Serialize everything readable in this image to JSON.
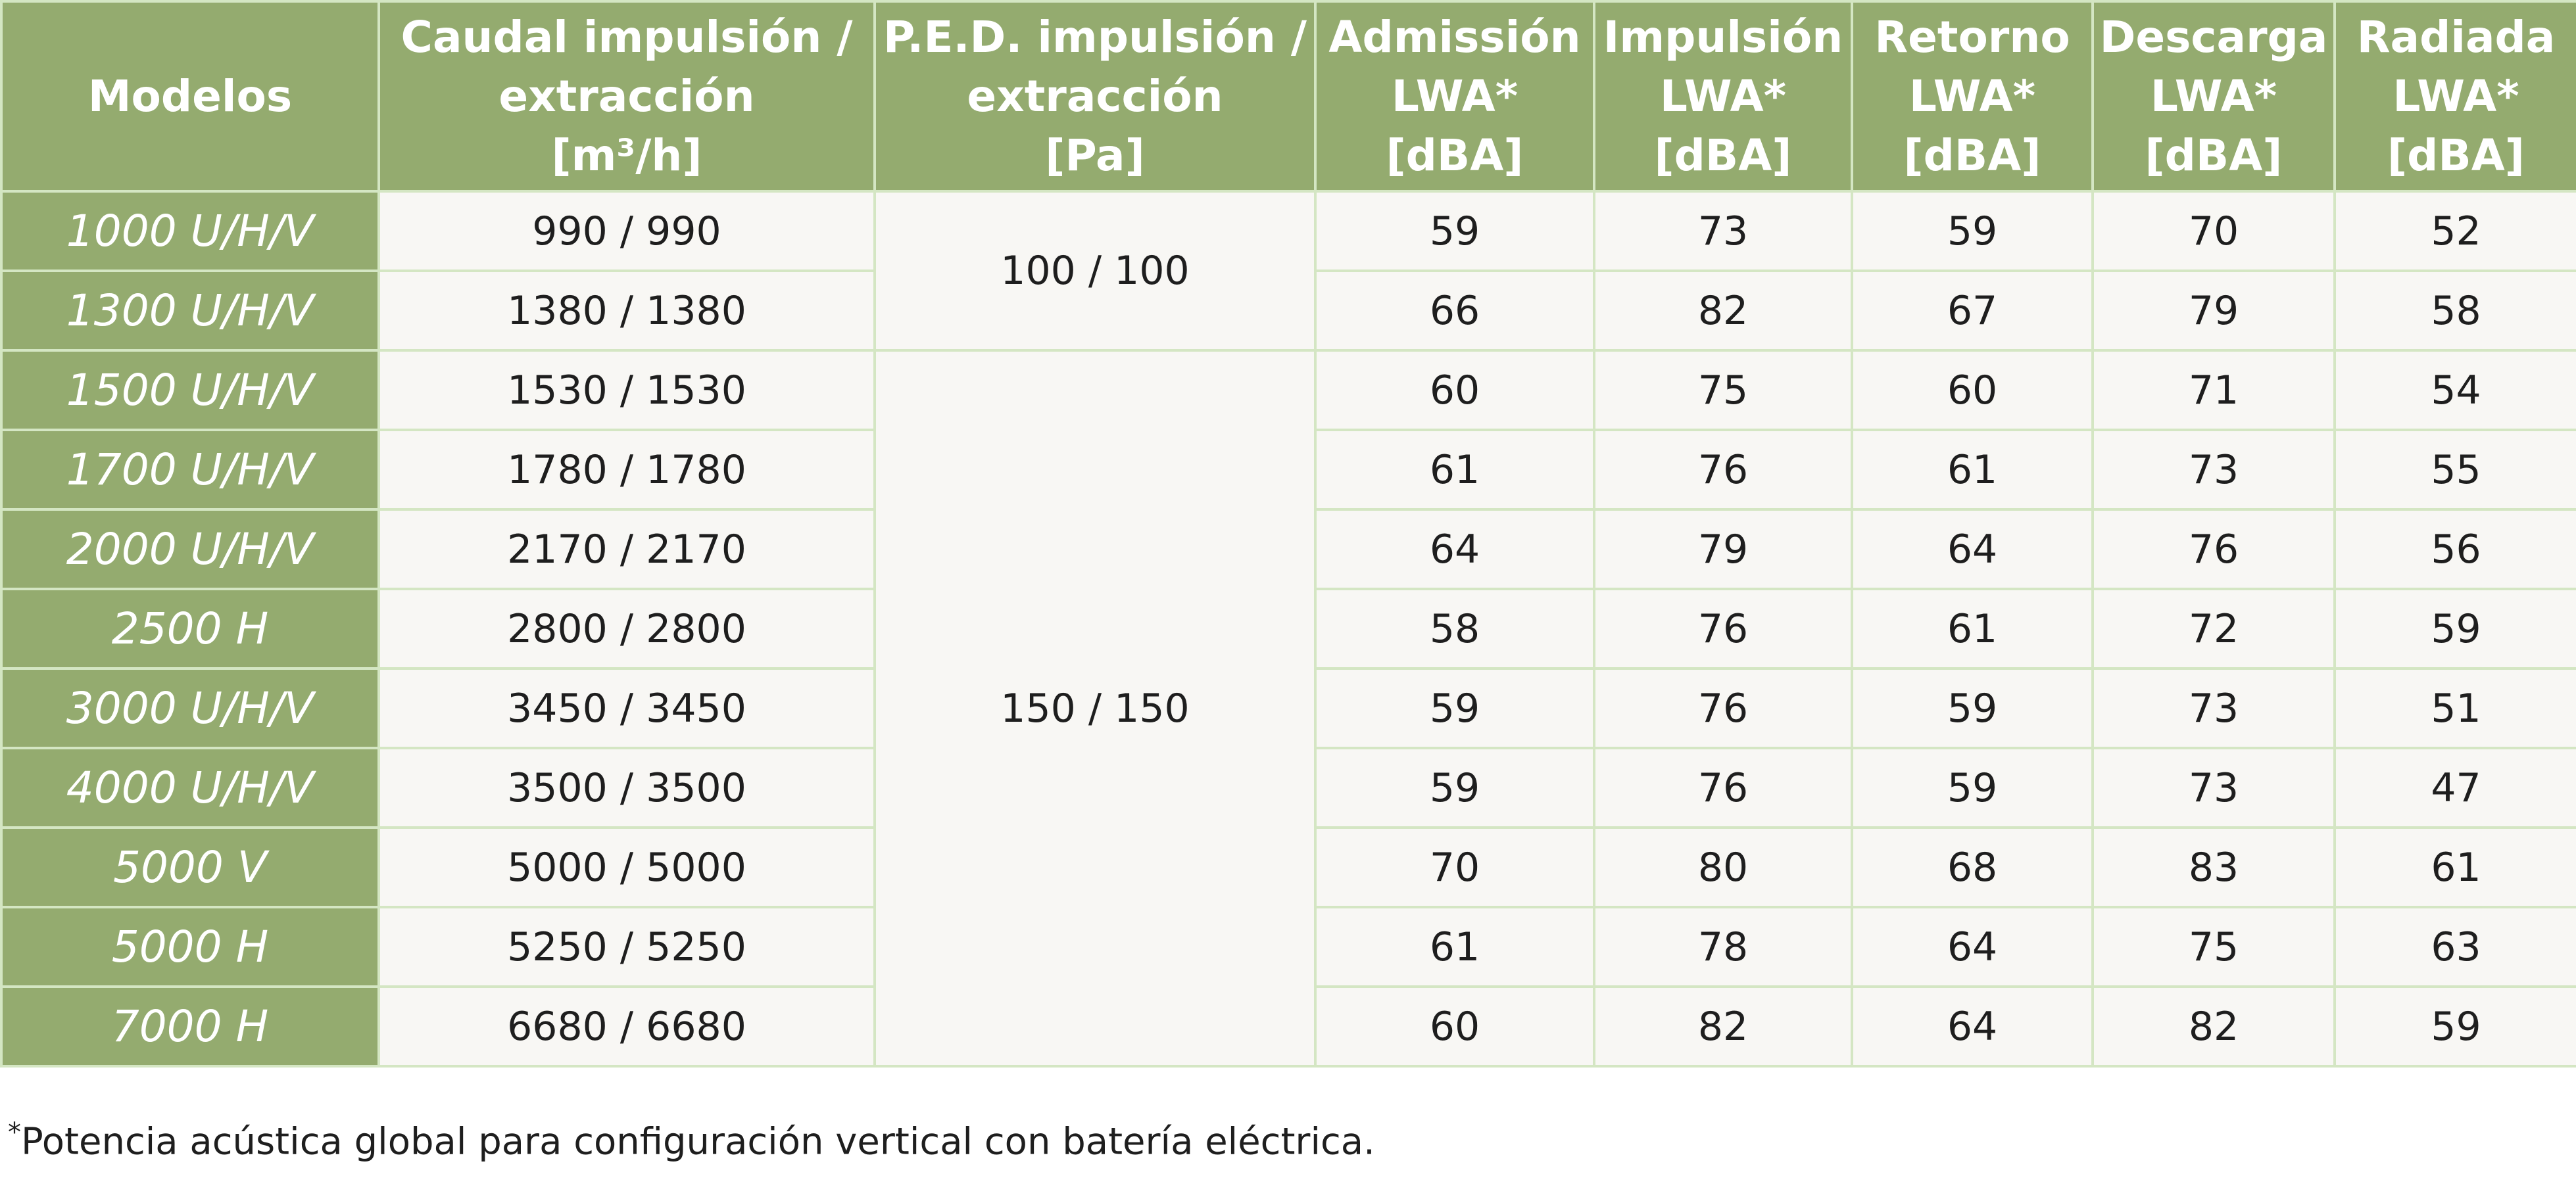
{
  "headers": [
    "Modelos",
    "Caudal impulsión /\nextracción\n[m³/h]",
    "P.E.D. impulsión /\nextracción\n[Pa]",
    "Admissión\nLWA*\n[dBA]",
    "Impulsión\nLWA*\n[dBA]",
    "Retorno\nLWA*\n[dBA]",
    "Descarga\nLWA*\n[dBA]",
    "Radiada\nLWA*\n[dBA]"
  ],
  "ped_groups": [
    "100 / 100",
    "150 / 150"
  ],
  "rows": [
    {
      "model": "1000 U/H/V",
      "caudal": "990 / 990",
      "adm": "59",
      "imp": "73",
      "ret": "59",
      "des": "70",
      "rad": "52"
    },
    {
      "model": "1300 U/H/V",
      "caudal": "1380 / 1380",
      "adm": "66",
      "imp": "82",
      "ret": "67",
      "des": "79",
      "rad": "58"
    },
    {
      "model": "1500 U/H/V",
      "caudal": "1530 / 1530",
      "adm": "60",
      "imp": "75",
      "ret": "60",
      "des": "71",
      "rad": "54"
    },
    {
      "model": "1700 U/H/V",
      "caudal": "1780 / 1780",
      "adm": "61",
      "imp": "76",
      "ret": "61",
      "des": "73",
      "rad": "55"
    },
    {
      "model": "2000 U/H/V",
      "caudal": "2170 / 2170",
      "adm": "64",
      "imp": "79",
      "ret": "64",
      "des": "76",
      "rad": "56"
    },
    {
      "model": "2500 H",
      "caudal": "2800 / 2800",
      "adm": "58",
      "imp": "76",
      "ret": "61",
      "des": "72",
      "rad": "59"
    },
    {
      "model": "3000 U/H/V",
      "caudal": "3450 / 3450",
      "adm": "59",
      "imp": "76",
      "ret": "59",
      "des": "73",
      "rad": "51"
    },
    {
      "model": "4000 U/H/V",
      "caudal": "3500 / 3500",
      "adm": "59",
      "imp": "76",
      "ret": "59",
      "des": "73",
      "rad": "47"
    },
    {
      "model": "5000 V",
      "caudal": "5000 / 5000",
      "adm": "70",
      "imp": "80",
      "ret": "68",
      "des": "83",
      "rad": "61"
    },
    {
      "model": "5000 H",
      "caudal": "5250 / 5250",
      "adm": "61",
      "imp": "78",
      "ret": "64",
      "des": "75",
      "rad": "63"
    },
    {
      "model": "7000 H",
      "caudal": "6680 / 6680",
      "adm": "60",
      "imp": "82",
      "ret": "64",
      "des": "82",
      "rad": "59"
    }
  ],
  "footnote": {
    "mark": "*",
    "text": "Potencia acústica global para configuración vertical con batería eléctrica."
  }
}
